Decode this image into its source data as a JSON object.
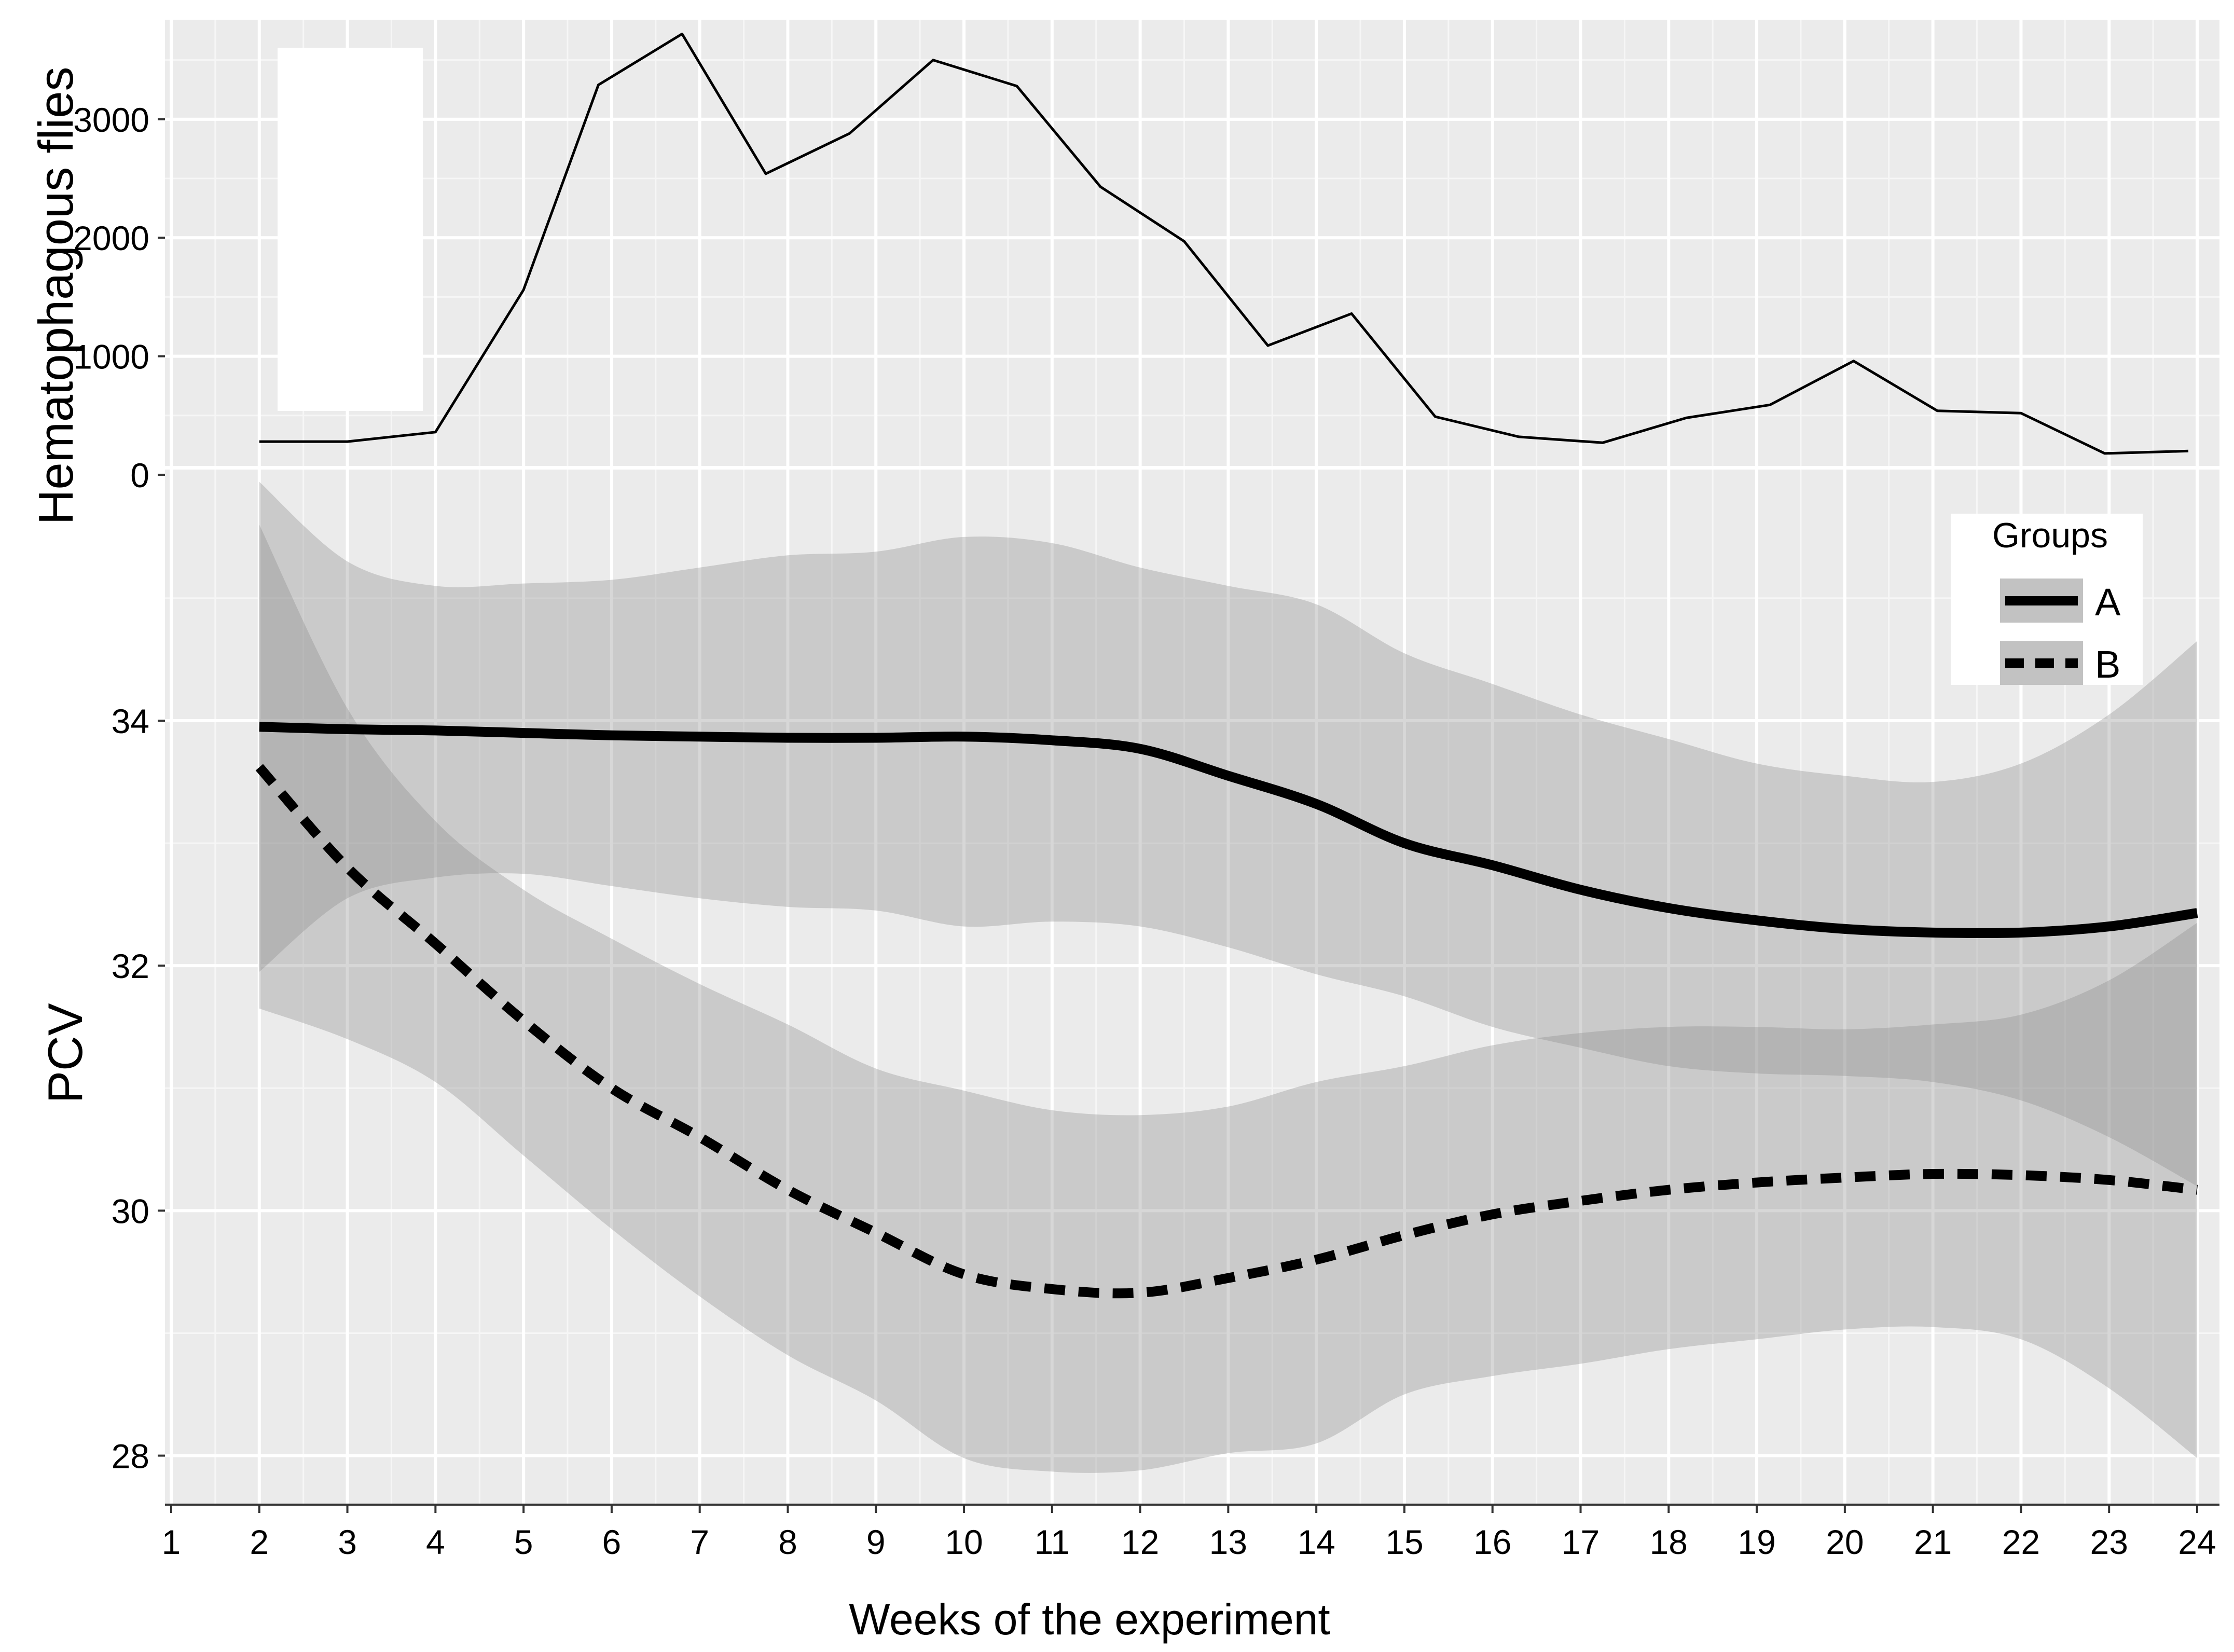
{
  "chart_data": [
    {
      "type": "line",
      "ylabel": "Hematophagous flies",
      "ylim": [
        0,
        3700
      ],
      "yticks": [
        0,
        1000,
        2000,
        3000
      ],
      "ytick_labels": [
        "0",
        "1000",
        "2000",
        "3000"
      ],
      "grid": true,
      "series": [
        {
          "name": "Hematophagous flies",
          "x": [
            2,
            3,
            4,
            5,
            5.85,
            6.8,
            7.75,
            8.7,
            9.65,
            10.6,
            11.55,
            12.5,
            13.45,
            14.4,
            15.35,
            16.3,
            17.25,
            18.2,
            19.15,
            20.1,
            21.05,
            22,
            22.95,
            23.9
          ],
          "values": [
            280,
            280,
            360,
            1560,
            3290,
            3720,
            2540,
            2880,
            3500,
            3280,
            2430,
            1970,
            1090,
            1360,
            490,
            320,
            270,
            480,
            590,
            960,
            540,
            520,
            180,
            200
          ]
        }
      ]
    },
    {
      "type": "line",
      "title": "",
      "xlabel": "Weeks of the experiment",
      "ylabel": "PCV",
      "xlim": [
        1,
        24
      ],
      "ylim": [
        27.6,
        36.05
      ],
      "x_ticks": [
        "1",
        "2",
        "3",
        "4",
        "5",
        "6",
        "7",
        "8",
        "9",
        "10",
        "11",
        "12",
        "13",
        "14",
        "15",
        "16",
        "17",
        "18",
        "19",
        "20",
        "21",
        "22",
        "23",
        "24"
      ],
      "yticks": [
        28,
        30,
        32,
        34
      ],
      "ytick_labels": [
        "28",
        "30",
        "32",
        "34"
      ],
      "grid": true,
      "legend": {
        "title": "Groups",
        "position": "top-right",
        "entries": [
          "A",
          "B"
        ]
      },
      "series": [
        {
          "name": "A",
          "style": "solid",
          "x": [
            2,
            3,
            4,
            5,
            6,
            7,
            8,
            9,
            10,
            11,
            12,
            13,
            14,
            15,
            16,
            17,
            18,
            19,
            20,
            21,
            22,
            23,
            24
          ],
          "values": [
            33.95,
            33.93,
            33.92,
            33.9,
            33.88,
            33.87,
            33.86,
            33.86,
            33.87,
            33.84,
            33.77,
            33.55,
            33.32,
            33.0,
            32.82,
            32.62,
            32.47,
            32.37,
            32.3,
            32.27,
            32.27,
            32.32,
            32.43
          ],
          "ci_lower": [
            31.95,
            32.55,
            32.72,
            32.75,
            32.65,
            32.55,
            32.48,
            32.45,
            32.32,
            32.36,
            32.32,
            32.15,
            31.93,
            31.75,
            31.5,
            31.33,
            31.18,
            31.12,
            31.1,
            31.05,
            30.9,
            30.6,
            30.2
          ],
          "ci_upper": [
            35.95,
            35.3,
            35.1,
            35.12,
            35.15,
            35.25,
            35.35,
            35.38,
            35.5,
            35.45,
            35.25,
            35.1,
            34.95,
            34.55,
            34.3,
            34.05,
            33.85,
            33.65,
            33.55,
            33.5,
            33.65,
            34.05,
            34.65
          ]
        },
        {
          "name": "B",
          "style": "dashed",
          "x": [
            2,
            3,
            4,
            5,
            6,
            7,
            8,
            9,
            10,
            11,
            12,
            13,
            14,
            15,
            16,
            17,
            18,
            19,
            20,
            21,
            22,
            23,
            24
          ],
          "values": [
            33.62,
            32.8,
            32.18,
            31.55,
            31.0,
            30.6,
            30.17,
            29.82,
            29.48,
            29.36,
            29.33,
            29.45,
            29.6,
            29.8,
            29.97,
            30.08,
            30.17,
            30.23,
            30.27,
            30.3,
            30.29,
            30.25,
            30.17
          ],
          "ci_lower": [
            31.65,
            31.4,
            31.05,
            30.45,
            29.85,
            29.3,
            28.82,
            28.45,
            27.98,
            27.87,
            27.88,
            28.02,
            28.1,
            28.5,
            28.65,
            28.75,
            28.87,
            28.95,
            29.03,
            29.05,
            28.95,
            28.55,
            27.98
          ],
          "ci_upper": [
            35.6,
            34.1,
            33.18,
            32.62,
            32.22,
            31.85,
            31.52,
            31.16,
            30.98,
            30.82,
            30.78,
            30.85,
            31.05,
            31.18,
            31.35,
            31.45,
            31.5,
            31.5,
            31.48,
            31.52,
            31.6,
            31.88,
            32.35
          ]
        }
      ]
    }
  ]
}
